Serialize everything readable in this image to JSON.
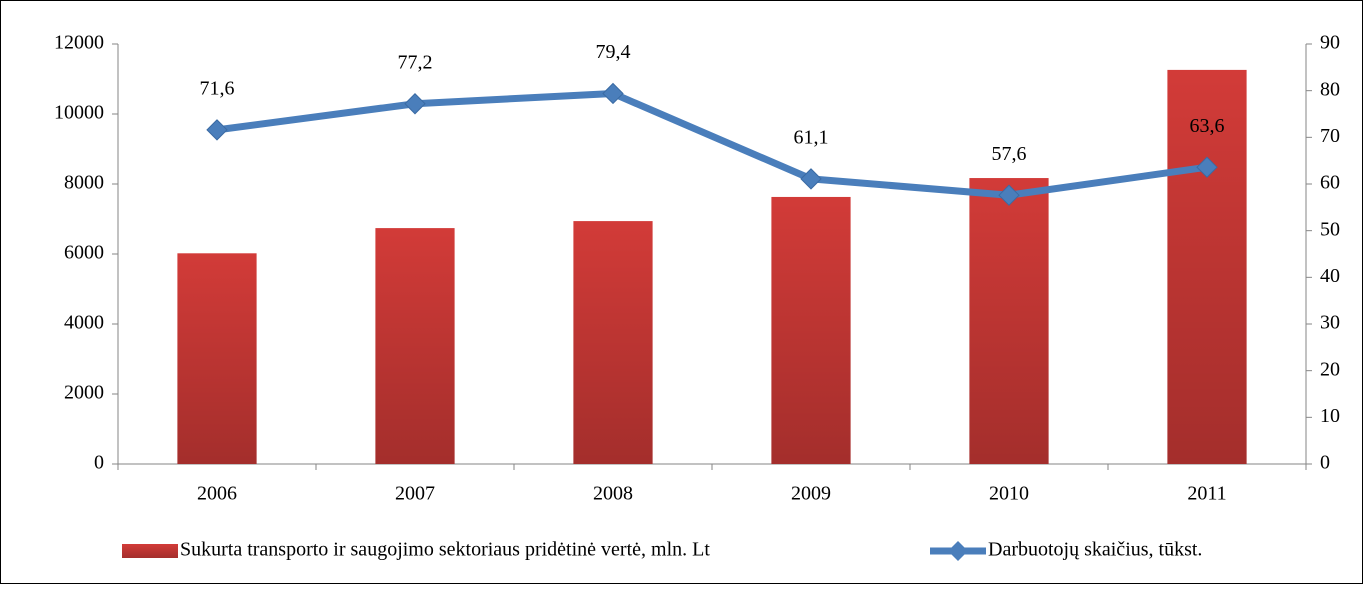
{
  "chart_data": {
    "type": "bar_line",
    "categories": [
      "2006",
      "2007",
      "2008",
      "2009",
      "2010",
      "2011"
    ],
    "ylim": [
      0,
      12000
    ],
    "yticks": [
      0,
      2000,
      4000,
      6000,
      8000,
      10000,
      12000
    ],
    "y2lim": [
      0,
      90
    ],
    "y2ticks": [
      0,
      10,
      20,
      30,
      40,
      50,
      60,
      70,
      80,
      90
    ],
    "series": [
      {
        "name": "Sukurta transporto ir saugojimo sektoriaus pridėtinė vertė, mln. Lt",
        "type": "bar",
        "color": "#d23b38",
        "values": [
          6020,
          6740,
          6940,
          7630,
          8170,
          11260
        ]
      },
      {
        "name": "Darbuotojų skaičius, tūkst.",
        "type": "line",
        "axis": "y2",
        "color": "#4a7ebb",
        "values": [
          71.6,
          77.2,
          79.4,
          61.1,
          57.6,
          63.6
        ],
        "value_labels": [
          "71,6",
          "77,2",
          "79,4",
          "61,1",
          "57,6",
          "63,6"
        ]
      }
    ],
    "legend": "bottom"
  }
}
